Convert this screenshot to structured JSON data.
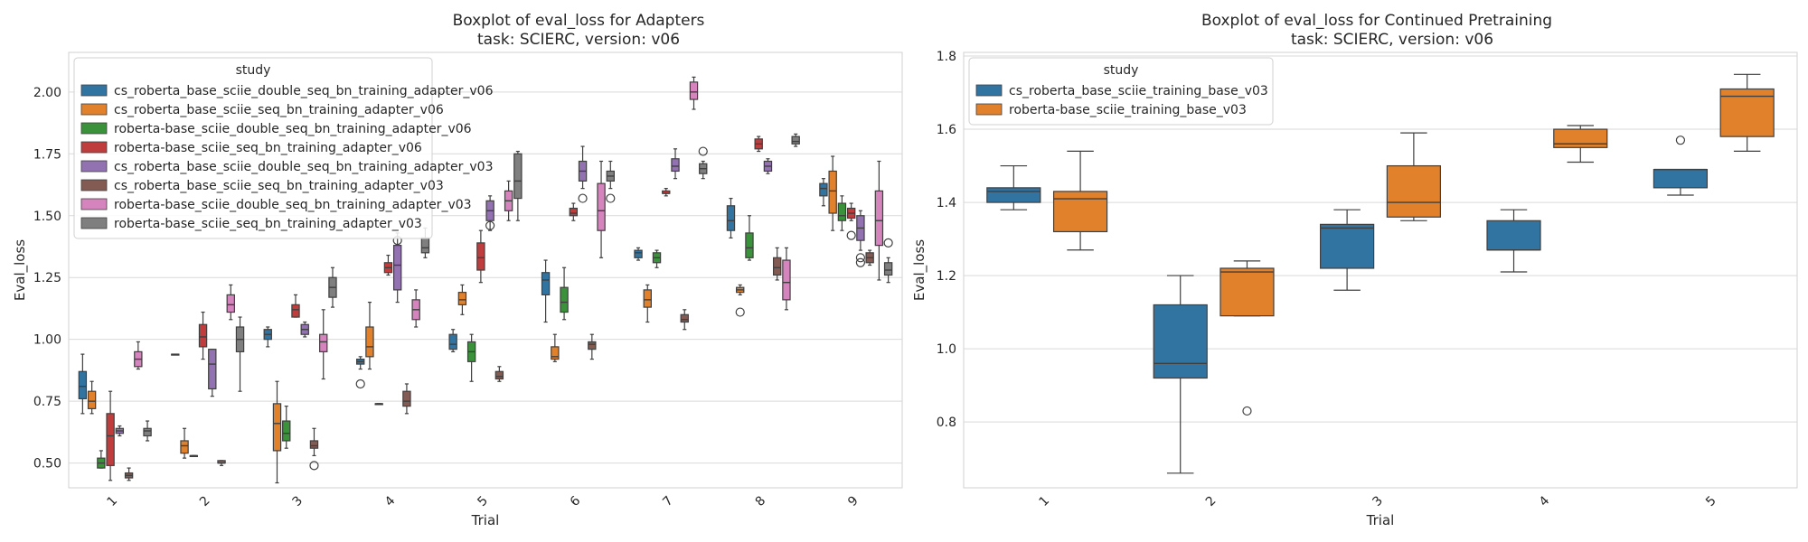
{
  "figure": {
    "colors": {
      "blue": "#3274a1",
      "orange": "#e1812c",
      "green": "#3a923a",
      "red": "#c03d3e",
      "purple": "#9372b2",
      "brown": "#845b53",
      "pink": "#d684bd",
      "gray": "#7f7f7f",
      "grid": "#d9d9d9",
      "whisker": "#3f3f3f"
    }
  },
  "chart_data": [
    {
      "type": "box",
      "title": [
        "Boxplot of eval_loss for Adapters",
        "task: SCIERC, version: v06"
      ],
      "xlabel": "Trial",
      "ylabel": "Eval_loss",
      "categories": [
        "1",
        "2",
        "3",
        "4",
        "5",
        "6",
        "7",
        "8",
        "9"
      ],
      "ylim": [
        0.4,
        2.16
      ],
      "yticks": [
        0.5,
        0.75,
        1.0,
        1.25,
        1.5,
        1.75,
        2.0
      ],
      "ytick_labels": [
        "0.50",
        "0.75",
        "1.00",
        "1.25",
        "1.50",
        "1.75",
        "2.00"
      ],
      "grid": true,
      "legend": {
        "title": "study",
        "position": "top-left"
      },
      "series": [
        {
          "name": "cs_roberta_base_sciie_double_seq_bn_training_adapter_v06",
          "color": "#3274a1",
          "boxes": [
            [
              0.7,
              0.76,
              0.81,
              0.87,
              0.94
            ],
            [
              0.94,
              0.94,
              0.94,
              0.94,
              0.94
            ],
            [
              0.97,
              1.0,
              1.02,
              1.04,
              1.05
            ],
            [
              0.88,
              0.9,
              0.91,
              0.92,
              0.93
            ],
            [
              0.95,
              0.96,
              0.98,
              1.02,
              1.04
            ],
            [
              1.07,
              1.18,
              1.24,
              1.27,
              1.32
            ],
            [
              1.32,
              1.33,
              1.35,
              1.36,
              1.37
            ],
            [
              1.41,
              1.44,
              1.48,
              1.54,
              1.57
            ],
            [
              1.54,
              1.58,
              1.61,
              1.63,
              1.65
            ]
          ],
          "outliers": [
            [],
            [],
            [],
            [
              0.82
            ],
            [],
            [],
            [],
            [],
            []
          ]
        },
        {
          "name": "cs_roberta_base_sciie_seq_bn_training_adapter_v06",
          "color": "#e1812c",
          "boxes": [
            [
              0.7,
              0.72,
              0.75,
              0.79,
              0.83
            ],
            [
              0.52,
              0.54,
              0.57,
              0.59,
              0.64
            ],
            [
              0.42,
              0.55,
              0.66,
              0.74,
              0.83
            ],
            [
              0.88,
              0.93,
              0.97,
              1.05,
              1.15
            ],
            [
              1.1,
              1.14,
              1.16,
              1.19,
              1.22
            ],
            [
              0.91,
              0.92,
              0.93,
              0.97,
              1.02
            ],
            [
              1.07,
              1.13,
              1.16,
              1.2,
              1.22
            ],
            [
              1.18,
              1.19,
              1.2,
              1.21,
              1.22
            ],
            [
              1.44,
              1.51,
              1.6,
              1.68,
              1.74
            ]
          ],
          "outliers": [
            [],
            [],
            [],
            [],
            [],
            [],
            [],
            [
              1.11
            ],
            []
          ]
        },
        {
          "name": "roberta-base_sciie_double_seq_bn_training_adapter_v06",
          "color": "#3a923a",
          "boxes": [
            [
              0.48,
              0.48,
              0.5,
              0.52,
              0.55
            ],
            [
              0.53,
              0.53,
              0.53,
              0.53,
              0.53
            ],
            [
              0.56,
              0.59,
              0.62,
              0.67,
              0.73
            ],
            [
              0.74,
              0.74,
              0.74,
              0.74,
              0.74
            ],
            [
              0.83,
              0.91,
              0.95,
              0.99,
              1.02
            ],
            [
              1.08,
              1.11,
              1.15,
              1.21,
              1.29
            ],
            [
              1.29,
              1.31,
              1.33,
              1.35,
              1.36
            ],
            [
              1.32,
              1.33,
              1.37,
              1.43,
              1.5
            ],
            [
              1.44,
              1.48,
              1.5,
              1.55,
              1.58
            ]
          ],
          "outliers": [
            [],
            [],
            [],
            [],
            [],
            [],
            [],
            [],
            []
          ]
        },
        {
          "name": "roberta-base_sciie_seq_bn_training_adapter_v06",
          "color": "#c03d3e",
          "boxes": [
            [
              0.43,
              0.49,
              0.61,
              0.7,
              0.79
            ],
            [
              0.92,
              0.97,
              1.01,
              1.06,
              1.11
            ],
            [
              1.09,
              1.09,
              1.12,
              1.14,
              1.18
            ],
            [
              1.26,
              1.27,
              1.29,
              1.31,
              1.34
            ],
            [
              1.23,
              1.28,
              1.33,
              1.39,
              1.44
            ],
            [
              1.48,
              1.5,
              1.51,
              1.53,
              1.55
            ],
            [
              1.58,
              1.59,
              1.59,
              1.6,
              1.61
            ],
            [
              1.76,
              1.77,
              1.79,
              1.81,
              1.82
            ],
            [
              1.48,
              1.49,
              1.51,
              1.53,
              1.55
            ]
          ],
          "outliers": [
            [],
            [],
            [],
            [],
            [],
            [],
            [],
            [],
            [
              1.42
            ]
          ]
        },
        {
          "name": "cs_roberta_base_sciie_double_seq_bn_training_adapter_v03",
          "color": "#9372b2",
          "boxes": [
            [
              0.61,
              0.62,
              0.63,
              0.64,
              0.65
            ],
            [
              0.77,
              0.8,
              0.9,
              0.96,
              0.96
            ],
            [
              1.01,
              1.02,
              1.04,
              1.06,
              1.07
            ],
            [
              1.15,
              1.2,
              1.3,
              1.38,
              1.43
            ],
            [
              1.44,
              1.48,
              1.52,
              1.56,
              1.58
            ],
            [
              1.61,
              1.64,
              1.68,
              1.72,
              1.78
            ],
            [
              1.65,
              1.68,
              1.7,
              1.73,
              1.77
            ],
            [
              1.67,
              1.68,
              1.7,
              1.72,
              1.73
            ],
            [
              1.36,
              1.4,
              1.45,
              1.5,
              1.52
            ]
          ],
          "outliers": [
            [],
            [],
            [],
            [
              1.4
            ],
            [
              1.46
            ],
            [
              1.57
            ],
            [],
            [],
            [
              1.31,
              1.33
            ]
          ]
        },
        {
          "name": "cs_roberta_base_sciie_seq_bn_training_adapter_v03",
          "color": "#845b53",
          "boxes": [
            [
              0.43,
              0.44,
              0.45,
              0.46,
              0.48
            ],
            [
              0.49,
              0.5,
              0.5,
              0.51,
              0.51
            ],
            [
              0.53,
              0.56,
              0.57,
              0.59,
              0.64
            ],
            [
              0.7,
              0.73,
              0.75,
              0.79,
              0.82
            ],
            [
              0.83,
              0.84,
              0.85,
              0.87,
              0.89
            ],
            [
              0.92,
              0.96,
              0.98,
              0.99,
              1.02
            ],
            [
              1.04,
              1.07,
              1.08,
              1.1,
              1.12
            ],
            [
              1.24,
              1.26,
              1.29,
              1.33,
              1.37
            ],
            [
              1.3,
              1.31,
              1.33,
              1.35,
              1.36
            ]
          ],
          "outliers": [
            [],
            [],
            [
              0.49
            ],
            [],
            [],
            [],
            [],
            [],
            []
          ]
        },
        {
          "name": "roberta-base_sciie_double_seq_bn_training_adapter_v03",
          "color": "#d684bd",
          "boxes": [
            [
              0.88,
              0.89,
              0.92,
              0.95,
              0.99
            ],
            [
              1.08,
              1.11,
              1.14,
              1.18,
              1.22
            ],
            [
              0.84,
              0.95,
              0.99,
              1.02,
              1.12
            ],
            [
              1.05,
              1.08,
              1.12,
              1.16,
              1.2
            ],
            [
              1.48,
              1.52,
              1.56,
              1.6,
              1.64
            ],
            [
              1.33,
              1.44,
              1.52,
              1.63,
              1.72
            ],
            [
              1.93,
              1.97,
              2.0,
              2.04,
              2.06
            ],
            [
              1.12,
              1.16,
              1.23,
              1.32,
              1.37
            ],
            [
              1.24,
              1.38,
              1.48,
              1.6,
              1.72
            ]
          ],
          "outliers": [
            [],
            [],
            [],
            [],
            [],
            [],
            [],
            [],
            []
          ]
        },
        {
          "name": "roberta-base_sciie_seq_bn_training_adapter_v03",
          "color": "#7f7f7f",
          "boxes": [
            [
              0.59,
              0.61,
              0.63,
              0.64,
              0.67
            ],
            [
              0.79,
              0.95,
              1.0,
              1.05,
              1.09
            ],
            [
              1.13,
              1.17,
              1.21,
              1.25,
              1.29
            ],
            [
              1.33,
              1.35,
              1.37,
              1.41,
              1.45
            ],
            [
              1.48,
              1.57,
              1.64,
              1.75,
              1.76
            ],
            [
              1.61,
              1.64,
              1.66,
              1.68,
              1.72
            ],
            [
              1.65,
              1.67,
              1.69,
              1.71,
              1.72
            ],
            [
              1.78,
              1.79,
              1.8,
              1.82,
              1.83
            ],
            [
              1.23,
              1.26,
              1.28,
              1.31,
              1.33
            ]
          ],
          "outliers": [
            [],
            [],
            [],
            [],
            [],
            [
              1.57
            ],
            [
              1.76
            ],
            [],
            [
              1.39
            ]
          ]
        }
      ]
    },
    {
      "type": "box",
      "title": [
        "Boxplot of eval_loss for Continued Pretraining",
        "task: SCIERC, version: v06"
      ],
      "xlabel": "Trial",
      "ylabel": "Eval_loss",
      "categories": [
        "1",
        "2",
        "3",
        "4",
        "5"
      ],
      "ylim": [
        0.62,
        1.81
      ],
      "yticks": [
        0.8,
        1.0,
        1.2,
        1.4,
        1.6,
        1.8
      ],
      "ytick_labels": [
        "0.8",
        "1.0",
        "1.2",
        "1.4",
        "1.6",
        "1.8"
      ],
      "grid": true,
      "legend": {
        "title": "study",
        "position": "top-left"
      },
      "series": [
        {
          "name": "cs_roberta_base_sciie_training_base_v03",
          "color": "#3274a1",
          "boxes": [
            [
              1.38,
              1.4,
              1.43,
              1.44,
              1.5
            ],
            [
              0.66,
              0.92,
              0.96,
              1.12,
              1.2
            ],
            [
              1.16,
              1.22,
              1.33,
              1.34,
              1.38
            ],
            [
              1.21,
              1.27,
              1.27,
              1.35,
              1.38
            ],
            [
              1.42,
              1.44,
              1.49,
              1.49,
              1.49
            ]
          ],
          "outliers": [
            [],
            [],
            [],
            [],
            [
              1.57
            ]
          ]
        },
        {
          "name": "roberta-base_sciie_training_base_v03",
          "color": "#e1812c",
          "boxes": [
            [
              1.27,
              1.32,
              1.41,
              1.43,
              1.54
            ],
            [
              1.09,
              1.09,
              1.21,
              1.22,
              1.24
            ],
            [
              1.35,
              1.36,
              1.4,
              1.5,
              1.59
            ],
            [
              1.51,
              1.55,
              1.56,
              1.6,
              1.61
            ],
            [
              1.54,
              1.58,
              1.69,
              1.71,
              1.75
            ]
          ],
          "outliers": [
            [],
            [
              0.83
            ],
            [],
            [],
            []
          ]
        }
      ]
    }
  ]
}
